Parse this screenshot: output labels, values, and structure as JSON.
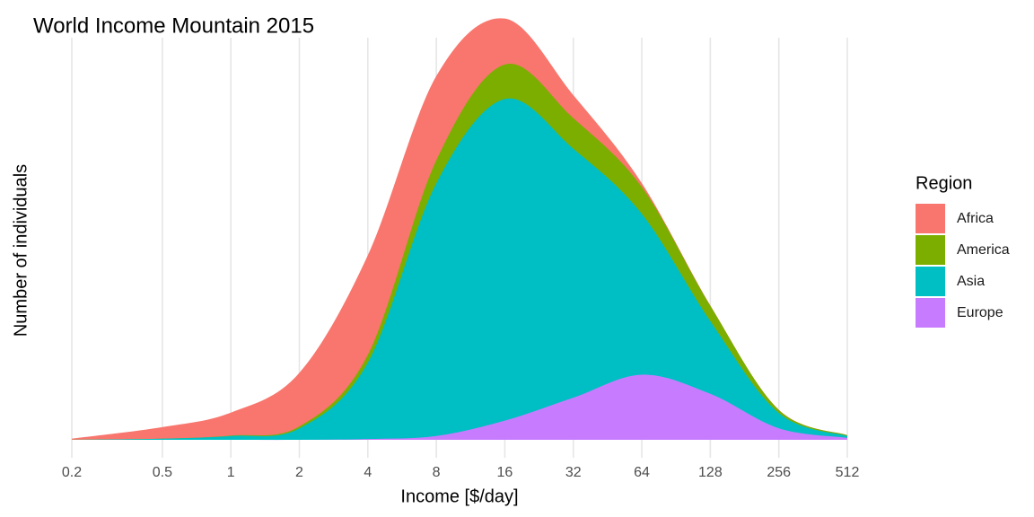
{
  "chart_data": {
    "type": "area",
    "title": "World Income Mountain 2015",
    "xlabel": "Income [$/day]",
    "ylabel": "Number of individuals",
    "x_scale": "log2",
    "x_ticks": [
      0.2,
      0.5,
      1,
      2,
      4,
      8,
      16,
      32,
      64,
      128,
      256,
      512
    ],
    "x_tick_labels": [
      "0.2",
      "0.5",
      "1",
      "2",
      "4",
      "8",
      "16",
      "32",
      "64",
      "128",
      "256",
      "512"
    ],
    "xlim": [
      0.2,
      512
    ],
    "ylim": [
      0,
      1.05
    ],
    "legend_title": "Region",
    "legend_position": "right",
    "grid": true,
    "stacked": true,
    "x": [
      0.2,
      0.5,
      1,
      2,
      4,
      8,
      16,
      32,
      64,
      128,
      256,
      512
    ],
    "series": [
      {
        "name": "Europe",
        "color": "#C77CFF",
        "values": [
          0,
          0,
          0,
          0,
          0.002,
          0.01,
          0.05,
          0.11,
          0.17,
          0.12,
          0.03,
          0.005
        ]
      },
      {
        "name": "Asia",
        "color": "#00BFC4",
        "values": [
          0,
          0.003,
          0.01,
          0.03,
          0.2,
          0.66,
          0.84,
          0.65,
          0.42,
          0.19,
          0.04,
          0.005
        ]
      },
      {
        "name": "America",
        "color": "#7CAE00",
        "values": [
          0,
          0,
          0.001,
          0.005,
          0.02,
          0.06,
          0.09,
          0.08,
          0.07,
          0.04,
          0.008,
          0.002
        ]
      },
      {
        "name": "Africa",
        "color": "#F8766D",
        "values": [
          0.003,
          0.03,
          0.06,
          0.14,
          0.26,
          0.22,
          0.12,
          0.06,
          0.01,
          0.001,
          0.0005,
          0
        ]
      }
    ]
  }
}
